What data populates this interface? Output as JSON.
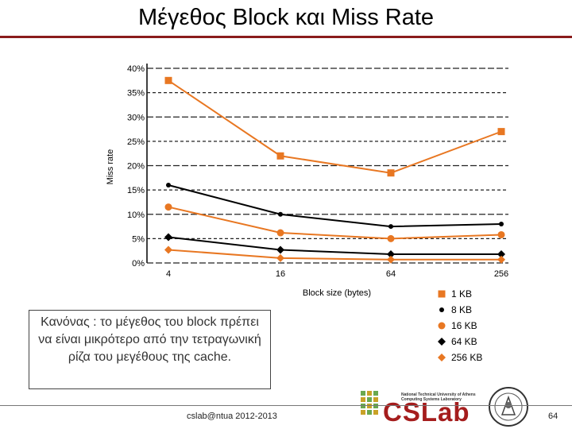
{
  "title": "Μέγεθος Block και Miss Rate",
  "rule_text": "Κανόνας : το μέγεθος του block πρέπει να είναι μικρότερο από την τετραγωνική ρίζα του μεγέθους της cache.",
  "footer": {
    "left_text": "cslab@ntua 2012-2013",
    "page_number": "64"
  },
  "logo": {
    "text": "CSLab",
    "small_line_1": "National Technical University of Athens",
    "small_line_2": "Computing Systems Laboratory"
  },
  "colors": {
    "orange": "#e87722",
    "black": "#000000",
    "title_rule": "#8a1c1c"
  },
  "chart_data": {
    "type": "line",
    "xlabel": "Block size (bytes)",
    "ylabel": "Miss rate",
    "categories": [
      "4",
      "16",
      "64",
      "256"
    ],
    "ylim": [
      0,
      40
    ],
    "yticks": [
      "0%",
      "5%",
      "10%",
      "15%",
      "20%",
      "25%",
      "30%",
      "35%",
      "40%"
    ],
    "series": [
      {
        "name": "1 KB",
        "values": [
          37.5,
          22,
          18.5,
          27
        ],
        "color": "#e87722",
        "marker": "square"
      },
      {
        "name": "8 KB",
        "values": [
          16,
          10,
          7.5,
          8
        ],
        "color": "#000000",
        "marker": "dot"
      },
      {
        "name": "16 KB",
        "values": [
          11.5,
          6.2,
          5,
          5.8
        ],
        "color": "#e87722",
        "marker": "circle"
      },
      {
        "name": "64 KB",
        "values": [
          5.3,
          2.7,
          1.8,
          1.8
        ],
        "color": "#000000",
        "marker": "diamond"
      },
      {
        "name": "256 KB",
        "values": [
          2.7,
          1,
          0.7,
          0.7
        ],
        "color": "#e87722",
        "marker": "diamond"
      }
    ]
  }
}
